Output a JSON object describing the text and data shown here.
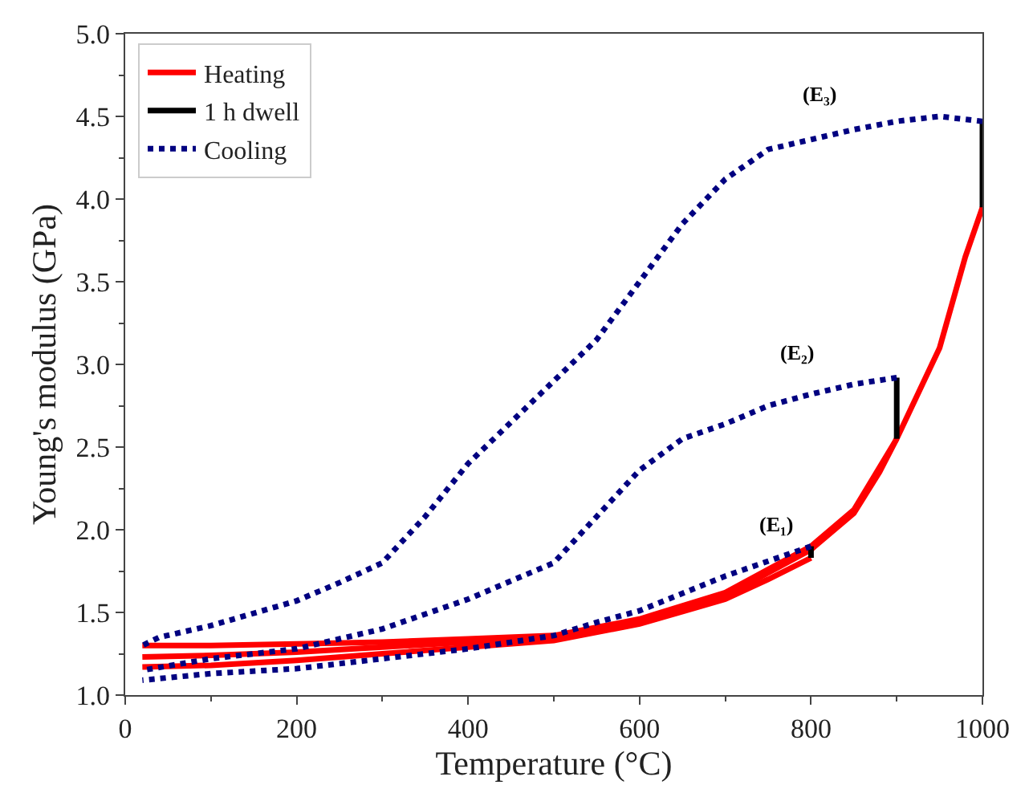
{
  "chart_data": {
    "type": "line",
    "xlabel": "Temperature (°C)",
    "ylabel": "Young's modulus (GPa)",
    "xlim": [
      0,
      1000
    ],
    "xticks": [
      0,
      200,
      400,
      600,
      800,
      1000
    ],
    "ylim": [
      1.0,
      5.0
    ],
    "yticks": [
      {
        "value": 1.0,
        "label": "1.0"
      },
      {
        "value": 1.5,
        "label": "1.5"
      },
      {
        "value": 2.0,
        "label": "2.0"
      },
      {
        "value": 2.5,
        "label": "2.5"
      },
      {
        "value": 3.0,
        "label": "3.0"
      },
      {
        "value": 3.5,
        "label": "3.5"
      },
      {
        "value": 4.0,
        "label": "4.0"
      },
      {
        "value": 4.5,
        "label": "4.5"
      },
      {
        "value": 5.0,
        "label": "5.0"
      }
    ],
    "legend": "top left",
    "marker": "none",
    "series": [
      {
        "name": "Heating",
        "color": "#ff0000",
        "line_style": "solid",
        "x": [
          20,
          100,
          200,
          300,
          400,
          500,
          600,
          700,
          750,
          800,
          null,
          20,
          100,
          200,
          300,
          400,
          500,
          600,
          700,
          800,
          850,
          880,
          900,
          null,
          20,
          100,
          200,
          300,
          400,
          500,
          600,
          700,
          800,
          850,
          900,
          950,
          980,
          1000
        ],
        "values": [
          1.17,
          1.18,
          1.21,
          1.25,
          1.29,
          1.33,
          1.43,
          1.58,
          1.7,
          1.83,
          null,
          1.23,
          1.24,
          1.26,
          1.29,
          1.32,
          1.35,
          1.44,
          1.6,
          1.88,
          2.1,
          2.35,
          2.55,
          null,
          1.3,
          1.3,
          1.31,
          1.32,
          1.34,
          1.36,
          1.46,
          1.62,
          1.9,
          2.12,
          2.55,
          3.1,
          3.65,
          3.95
        ]
      },
      {
        "name": "1 h dwell",
        "color": "#000000",
        "line_style": "solid",
        "x": [
          800,
          800,
          null,
          900,
          900,
          null,
          1000,
          1000
        ],
        "values": [
          1.83,
          1.9,
          null,
          2.55,
          2.92,
          null,
          3.95,
          4.47
        ]
      },
      {
        "name": "Cooling",
        "color": "#000080",
        "line_style": "dotted",
        "x": [
          800,
          700,
          600,
          550,
          500,
          400,
          300,
          200,
          100,
          20,
          null,
          900,
          850,
          800,
          750,
          700,
          650,
          600,
          550,
          500,
          400,
          300,
          200,
          100,
          20,
          null,
          1000,
          950,
          900,
          850,
          800,
          750,
          700,
          650,
          600,
          550,
          500,
          450,
          400,
          350,
          300,
          250,
          200,
          100,
          40,
          20
        ],
        "values": [
          1.9,
          1.72,
          1.51,
          1.44,
          1.36,
          1.28,
          1.22,
          1.16,
          1.13,
          1.09,
          null,
          2.92,
          2.88,
          2.82,
          2.75,
          2.64,
          2.55,
          2.36,
          2.08,
          1.8,
          1.58,
          1.4,
          1.28,
          1.22,
          1.15,
          null,
          4.47,
          4.5,
          4.47,
          4.42,
          4.36,
          4.3,
          4.12,
          3.85,
          3.5,
          3.15,
          2.9,
          2.65,
          2.4,
          2.08,
          1.8,
          1.68,
          1.57,
          1.42,
          1.35,
          1.3
        ]
      }
    ],
    "annotations": [
      "(E₁)",
      "(E₂)",
      "(E₃)"
    ]
  }
}
